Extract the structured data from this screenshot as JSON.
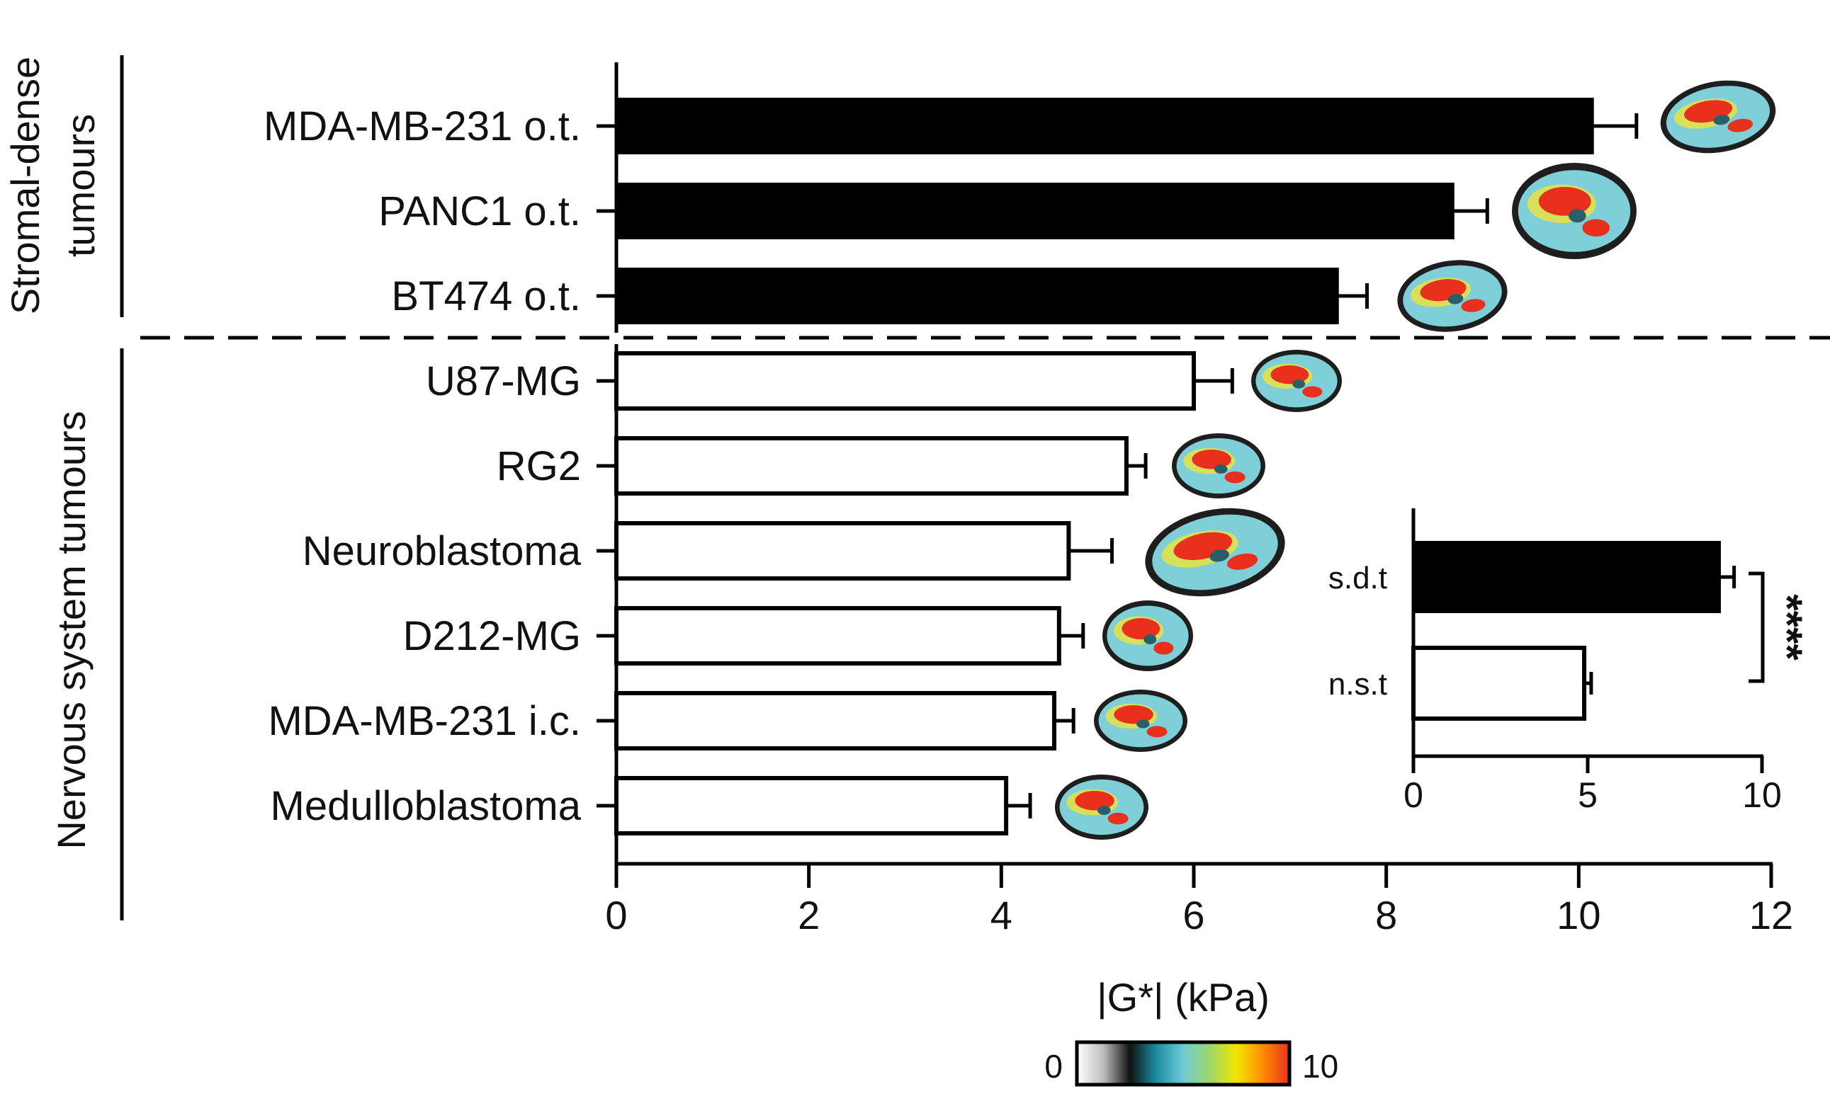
{
  "chart_data": [
    {
      "type": "bar",
      "orientation": "horizontal",
      "xlabel": "|G*| (kPa)",
      "xlim": [
        0,
        12
      ],
      "xticks": [
        0,
        2,
        4,
        6,
        8,
        10,
        12
      ],
      "groups": [
        {
          "label": "Stromal-dense tumours",
          "label_lines": [
            "Stromal-dense",
            "tumours"
          ]
        },
        {
          "label": "Nervous system tumours",
          "label_lines": [
            "Nervous system tumours"
          ]
        }
      ],
      "categories": [
        "MDA-MB-231 o.t.",
        "PANC1 o.t.",
        "BT474 o.t.",
        "U87-MG",
        "RG2",
        "Neuroblastoma",
        "D212-MG",
        "MDA-MB-231 i.c.",
        "Medulloblastoma"
      ],
      "values": [
        10.15,
        8.7,
        7.5,
        6.0,
        5.3,
        4.7,
        4.6,
        4.55,
        4.05
      ],
      "errors": [
        0.45,
        0.35,
        0.3,
        0.4,
        0.2,
        0.45,
        0.25,
        0.2,
        0.25
      ],
      "group_index": [
        0,
        0,
        0,
        1,
        1,
        1,
        1,
        1,
        1
      ],
      "colors": {
        "stromal": "#000000",
        "nervous": "#ffffff",
        "outline": "#000000"
      },
      "colorbar": {
        "min_label": "0",
        "max_label": "10",
        "colors": [
          "#ffffff",
          "#bdbdbd",
          "#111111",
          "#1b8fa3",
          "#6fcad6",
          "#9ed86b",
          "#f2e600",
          "#ff8c00",
          "#e8301c"
        ]
      }
    },
    {
      "type": "bar",
      "orientation": "horizontal",
      "inset": true,
      "categories": [
        "s.d.t",
        "n.s.t"
      ],
      "values": [
        8.8,
        4.9
      ],
      "errors": [
        0.4,
        0.2
      ],
      "xlim": [
        0,
        10
      ],
      "xticks": [
        0,
        5,
        10
      ],
      "significance": "****"
    }
  ]
}
